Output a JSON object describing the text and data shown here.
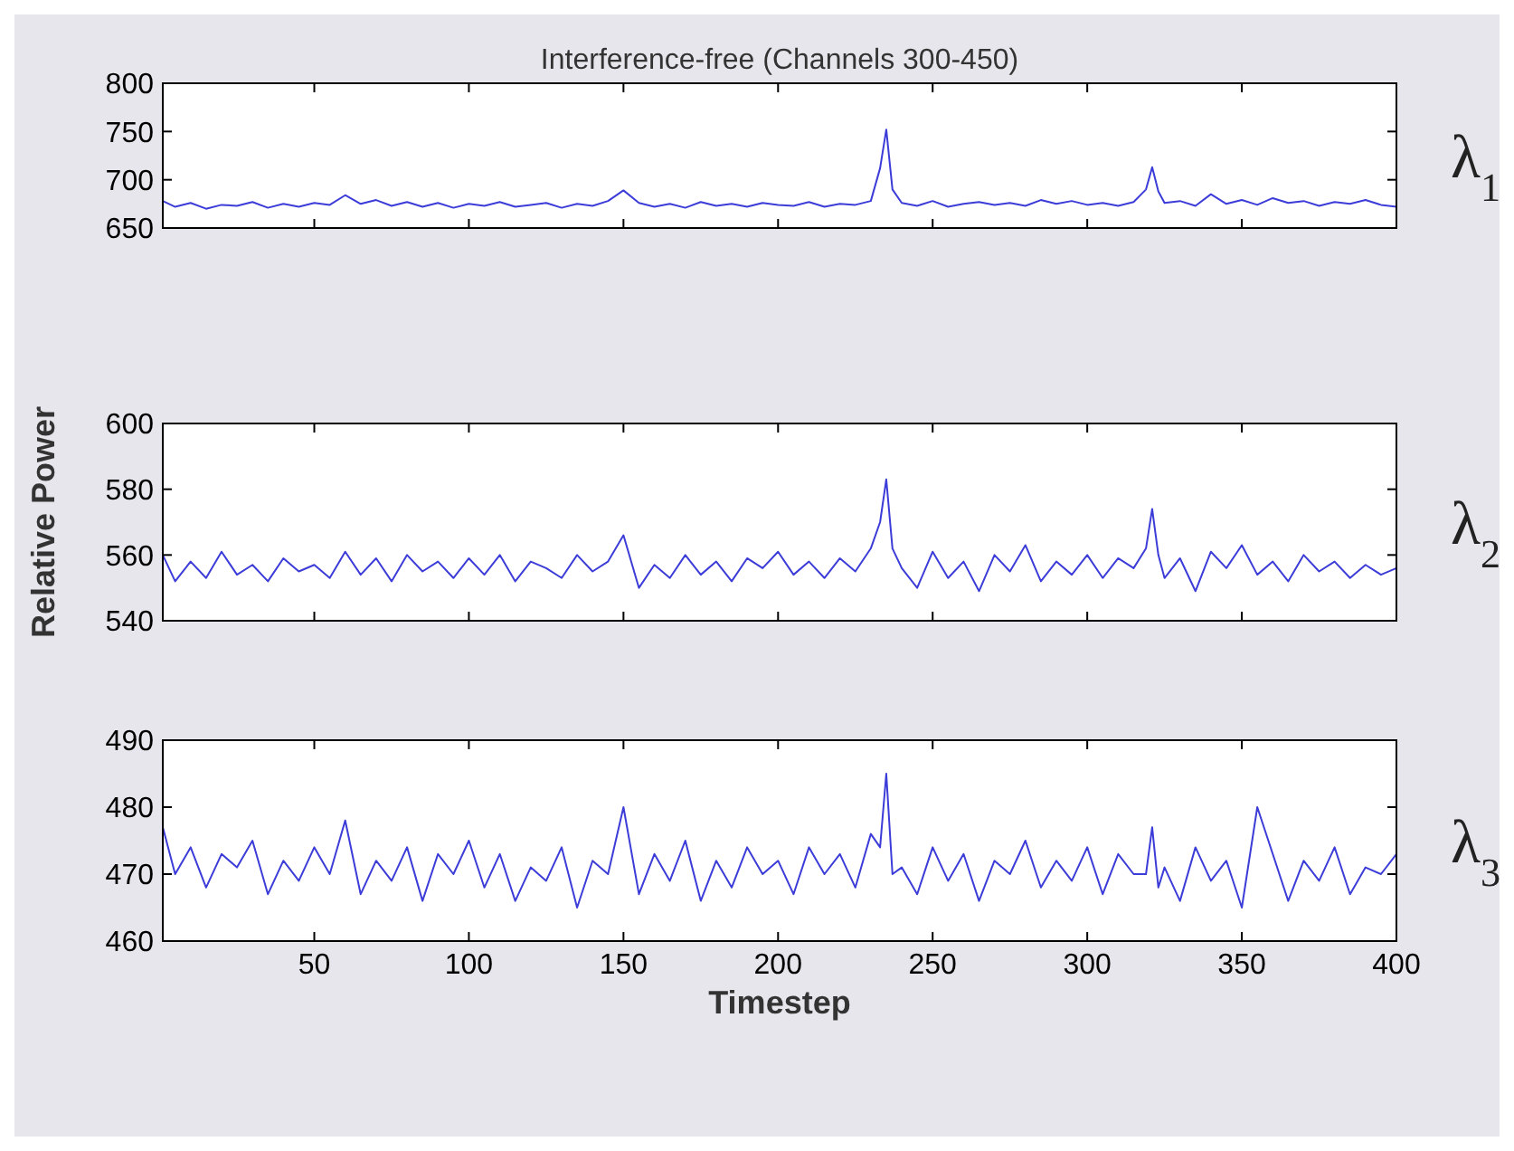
{
  "chart_data": [
    {
      "type": "line",
      "title": "Interference-free (Channels 300-450)",
      "x": [
        1,
        5,
        10,
        15,
        20,
        25,
        30,
        35,
        40,
        45,
        50,
        55,
        60,
        65,
        70,
        75,
        80,
        85,
        90,
        95,
        100,
        105,
        110,
        115,
        120,
        125,
        130,
        135,
        140,
        145,
        150,
        155,
        160,
        165,
        170,
        175,
        180,
        185,
        190,
        195,
        200,
        205,
        210,
        215,
        220,
        225,
        230,
        233,
        235,
        237,
        240,
        245,
        250,
        255,
        260,
        265,
        270,
        275,
        280,
        285,
        290,
        295,
        300,
        305,
        310,
        315,
        319,
        321,
        323,
        325,
        330,
        335,
        340,
        345,
        350,
        355,
        360,
        365,
        370,
        375,
        380,
        385,
        390,
        395,
        400
      ],
      "xlim": [
        1,
        400
      ],
      "xticks": [
        50,
        100,
        150,
        200,
        250,
        300,
        350,
        400
      ],
      "ylim": [
        650,
        800
      ],
      "yticks": [
        650,
        700,
        750,
        800
      ],
      "tick_labels": "y",
      "grid": false,
      "annotations": [
        "λ$_{1}$"
      ],
      "series": [
        {
          "color": "#3c3cd8",
          "values": [
            678,
            672,
            676,
            670,
            674,
            673,
            677,
            671,
            675,
            672,
            676,
            674,
            684,
            675,
            679,
            673,
            677,
            672,
            676,
            671,
            675,
            673,
            677,
            672,
            674,
            676,
            671,
            675,
            673,
            678,
            689,
            676,
            672,
            675,
            671,
            677,
            673,
            675,
            672,
            676,
            674,
            673,
            677,
            672,
            675,
            674,
            678,
            712,
            752,
            690,
            676,
            673,
            678,
            672,
            675,
            677,
            674,
            676,
            673,
            679,
            675,
            678,
            674,
            676,
            673,
            677,
            690,
            713,
            688,
            676,
            678,
            673,
            685,
            675,
            679,
            674,
            681,
            676,
            678,
            673,
            677,
            675,
            679,
            674,
            672
          ]
        }
      ]
    },
    {
      "type": "line",
      "ylabel": "Relative Power",
      "x": [
        1,
        5,
        10,
        15,
        20,
        25,
        30,
        35,
        40,
        45,
        50,
        55,
        60,
        65,
        70,
        75,
        80,
        85,
        90,
        95,
        100,
        105,
        110,
        115,
        120,
        125,
        130,
        135,
        140,
        145,
        150,
        155,
        160,
        165,
        170,
        175,
        180,
        185,
        190,
        195,
        200,
        205,
        210,
        215,
        220,
        225,
        230,
        233,
        235,
        237,
        240,
        245,
        250,
        255,
        260,
        265,
        270,
        275,
        280,
        285,
        290,
        295,
        300,
        305,
        310,
        315,
        319,
        321,
        323,
        325,
        330,
        335,
        340,
        345,
        350,
        355,
        360,
        365,
        370,
        375,
        380,
        385,
        390,
        395,
        400
      ],
      "xlim": [
        1,
        400
      ],
      "xticks": [
        50,
        100,
        150,
        200,
        250,
        300,
        350,
        400
      ],
      "ylim": [
        540,
        600
      ],
      "yticks": [
        540,
        560,
        580,
        600
      ],
      "tick_labels": "y",
      "grid": false,
      "annotations": [
        "λ$_{2}$"
      ],
      "series": [
        {
          "color": "#3c3cd8",
          "values": [
            560,
            552,
            558,
            553,
            561,
            554,
            557,
            552,
            559,
            555,
            557,
            553,
            561,
            554,
            559,
            552,
            560,
            555,
            558,
            553,
            559,
            554,
            560,
            552,
            558,
            556,
            553,
            560,
            555,
            558,
            566,
            550,
            557,
            553,
            560,
            554,
            558,
            552,
            559,
            556,
            561,
            554,
            558,
            553,
            559,
            555,
            562,
            570,
            583,
            562,
            556,
            550,
            561,
            553,
            558,
            549,
            560,
            555,
            563,
            552,
            558,
            554,
            560,
            553,
            559,
            556,
            562,
            574,
            560,
            553,
            559,
            549,
            561,
            556,
            563,
            554,
            558,
            552,
            560,
            555,
            558,
            553,
            557,
            554,
            556
          ]
        }
      ]
    },
    {
      "type": "line",
      "xlabel": "Timestep",
      "x": [
        1,
        5,
        10,
        15,
        20,
        25,
        30,
        35,
        40,
        45,
        50,
        55,
        60,
        65,
        70,
        75,
        80,
        85,
        90,
        95,
        100,
        105,
        110,
        115,
        120,
        125,
        130,
        135,
        140,
        145,
        150,
        155,
        160,
        165,
        170,
        175,
        180,
        185,
        190,
        195,
        200,
        205,
        210,
        215,
        220,
        225,
        230,
        233,
        235,
        237,
        240,
        245,
        250,
        255,
        260,
        265,
        270,
        275,
        280,
        285,
        290,
        295,
        300,
        305,
        310,
        315,
        319,
        321,
        323,
        325,
        330,
        335,
        340,
        345,
        350,
        355,
        360,
        365,
        370,
        375,
        380,
        385,
        390,
        395,
        400
      ],
      "xlim": [
        1,
        400
      ],
      "xticks": [
        50,
        100,
        150,
        200,
        250,
        300,
        350,
        400
      ],
      "ylim": [
        460,
        490
      ],
      "yticks": [
        460,
        470,
        480,
        490
      ],
      "grid": false,
      "annotations": [
        "λ$_{3}$"
      ],
      "series": [
        {
          "color": "#3c3cd8",
          "values": [
            477,
            470,
            474,
            468,
            473,
            471,
            475,
            467,
            472,
            469,
            474,
            470,
            478,
            467,
            472,
            469,
            474,
            466,
            473,
            470,
            475,
            468,
            473,
            466,
            471,
            469,
            474,
            465,
            472,
            470,
            480,
            467,
            473,
            469,
            475,
            466,
            472,
            468,
            474,
            470,
            472,
            467,
            474,
            470,
            473,
            468,
            476,
            474,
            485,
            470,
            471,
            467,
            474,
            469,
            473,
            466,
            472,
            470,
            475,
            468,
            472,
            469,
            474,
            467,
            473,
            470,
            470,
            477,
            468,
            471,
            466,
            474,
            469,
            472,
            465,
            480,
            473,
            466,
            472,
            469,
            474,
            467,
            471,
            470,
            473
          ]
        }
      ]
    }
  ]
}
